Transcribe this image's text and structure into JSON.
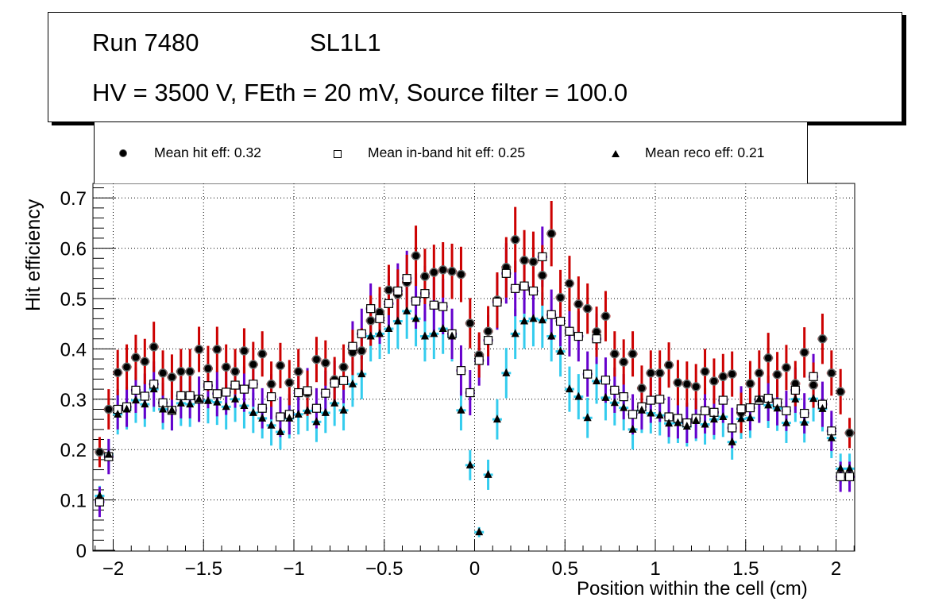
{
  "title_box": {
    "run": "Run 7480",
    "layer": "SL1L1",
    "conditions": "HV = 3500 V, FEth = 20 mV, Source filter = 100.0"
  },
  "legend": {
    "items": [
      {
        "label": "Mean hit  eff: 0.32",
        "marker": "filled-circle"
      },
      {
        "label": "Mean in-band hit eff: 0.25",
        "marker": "open-square"
      },
      {
        "label": "Mean reco eff: 0.21",
        "marker": "filled-triangle"
      }
    ]
  },
  "colors": {
    "hit_error": "#cc0000",
    "inband_error": "#6600cc",
    "reco_error": "#33ccee",
    "marker": "#000000"
  },
  "chart_data": {
    "type": "scatter",
    "title": "",
    "xlabel": "Position within the cell (cm)",
    "ylabel": "Hit efficiency",
    "xlim": [
      -2.1,
      2.1
    ],
    "ylim": [
      0,
      0.73
    ],
    "grid": true,
    "legend_position": "top",
    "xticks": [
      -2,
      -1.5,
      -1,
      -0.5,
      0,
      0.5,
      1,
      1.5,
      2
    ],
    "xtick_labels": [
      "−2",
      "−1.5",
      "−1",
      "−0.5",
      "0",
      "0.5",
      "1",
      "1.5",
      "2"
    ],
    "yticks": [
      0,
      0.1,
      0.2,
      0.3,
      0.4,
      0.5,
      0.6,
      0.7
    ],
    "ytick_labels": [
      "0",
      "0.1",
      "0.2",
      "0.3",
      "0.4",
      "0.5",
      "0.6",
      "0.7"
    ],
    "x_start": -2.075,
    "x_step": 0.05,
    "series": [
      {
        "name": "Mean hit  eff: 0.32",
        "marker": "filled-circle",
        "values": [
          0.195,
          0.28,
          0.353,
          0.364,
          0.383,
          0.375,
          0.404,
          0.352,
          0.344,
          0.355,
          0.355,
          0.399,
          0.361,
          0.399,
          0.364,
          0.355,
          0.396,
          0.369,
          0.39,
          0.33,
          0.367,
          0.333,
          0.355,
          0.312,
          0.379,
          0.372,
          0.339,
          0.364,
          0.393,
          0.396,
          0.456,
          0.473,
          0.517,
          0.508,
          0.532,
          0.585,
          0.544,
          0.552,
          0.557,
          0.554,
          0.548,
          0.451,
          0.388,
          0.435,
          0.497,
          0.562,
          0.617,
          0.576,
          0.573,
          0.546,
          0.629,
          0.502,
          0.53,
          0.489,
          0.48,
          0.434,
          0.465,
          0.39,
          0.374,
          0.39,
          0.322,
          0.352,
          0.352,
          0.368,
          0.333,
          0.33,
          0.325,
          0.355,
          0.336,
          0.345,
          0.35,
          0.273,
          0.331,
          0.352,
          0.382,
          0.349,
          0.363,
          0.331,
          0.393,
          0.328,
          0.42,
          0.352,
          0.315,
          0.233
        ],
        "errors": [
          0.03,
          0.04,
          0.045,
          0.045,
          0.045,
          0.045,
          0.05,
          0.045,
          0.045,
          0.045,
          0.045,
          0.045,
          0.045,
          0.045,
          0.045,
          0.045,
          0.045,
          0.045,
          0.045,
          0.045,
          0.045,
          0.045,
          0.045,
          0.045,
          0.045,
          0.045,
          0.045,
          0.045,
          0.045,
          0.045,
          0.05,
          0.05,
          0.05,
          0.05,
          0.055,
          0.06,
          0.055,
          0.055,
          0.055,
          0.055,
          0.055,
          0.05,
          0.045,
          0.05,
          0.055,
          0.06,
          0.065,
          0.06,
          0.06,
          0.06,
          0.065,
          0.055,
          0.055,
          0.055,
          0.05,
          0.05,
          0.05,
          0.045,
          0.045,
          0.045,
          0.045,
          0.045,
          0.045,
          0.045,
          0.045,
          0.045,
          0.045,
          0.045,
          0.045,
          0.045,
          0.045,
          0.04,
          0.045,
          0.045,
          0.05,
          0.045,
          0.045,
          0.045,
          0.05,
          0.045,
          0.05,
          0.045,
          0.045,
          0.03
        ]
      },
      {
        "name": "Mean in-band hit eff: 0.25",
        "marker": "open-square",
        "values": [
          0.096,
          0.186,
          0.28,
          0.285,
          0.318,
          0.306,
          0.33,
          0.293,
          0.278,
          0.307,
          0.307,
          0.3,
          0.327,
          0.311,
          0.314,
          0.328,
          0.32,
          0.33,
          0.282,
          0.305,
          0.265,
          0.27,
          0.313,
          0.317,
          0.282,
          0.312,
          0.332,
          0.337,
          0.405,
          0.43,
          0.48,
          0.46,
          0.49,
          0.515,
          0.54,
          0.495,
          0.51,
          0.487,
          0.484,
          0.43,
          0.357,
          0.313,
          0.377,
          0.417,
          0.493,
          0.55,
          0.52,
          0.525,
          0.515,
          0.583,
          0.468,
          0.455,
          0.435,
          0.425,
          0.35,
          0.42,
          0.338,
          0.318,
          0.305,
          0.27,
          0.285,
          0.298,
          0.3,
          0.265,
          0.262,
          0.253,
          0.262,
          0.277,
          0.274,
          0.298,
          0.243,
          0.281,
          0.283,
          0.298,
          0.302,
          0.293,
          0.277,
          0.318,
          0.272,
          0.345,
          0.29,
          0.237,
          0.146,
          0.146
        ],
        "errors": [
          0.03,
          0.035,
          0.04,
          0.04,
          0.045,
          0.045,
          0.045,
          0.04,
          0.04,
          0.045,
          0.045,
          0.045,
          0.045,
          0.045,
          0.045,
          0.045,
          0.045,
          0.045,
          0.04,
          0.045,
          0.04,
          0.04,
          0.045,
          0.045,
          0.04,
          0.045,
          0.045,
          0.045,
          0.05,
          0.05,
          0.05,
          0.05,
          0.055,
          0.055,
          0.055,
          0.055,
          0.055,
          0.055,
          0.055,
          0.05,
          0.05,
          0.045,
          0.05,
          0.05,
          0.055,
          0.06,
          0.055,
          0.055,
          0.055,
          0.06,
          0.05,
          0.05,
          0.05,
          0.05,
          0.045,
          0.05,
          0.045,
          0.045,
          0.045,
          0.04,
          0.045,
          0.045,
          0.045,
          0.04,
          0.04,
          0.04,
          0.04,
          0.045,
          0.045,
          0.045,
          0.04,
          0.045,
          0.045,
          0.045,
          0.045,
          0.045,
          0.04,
          0.045,
          0.04,
          0.045,
          0.045,
          0.04,
          0.03,
          0.03
        ]
      },
      {
        "name": "Mean reco eff: 0.21",
        "marker": "filled-triangle",
        "values": [
          0.108,
          0.19,
          0.27,
          0.28,
          0.298,
          0.29,
          0.32,
          0.28,
          0.278,
          0.292,
          0.29,
          0.3,
          0.297,
          0.294,
          0.285,
          0.3,
          0.287,
          0.273,
          0.262,
          0.248,
          0.235,
          0.262,
          0.27,
          0.277,
          0.255,
          0.273,
          0.292,
          0.278,
          0.33,
          0.35,
          0.425,
          0.43,
          0.44,
          0.455,
          0.475,
          0.46,
          0.425,
          0.43,
          0.44,
          0.425,
          0.278,
          0.169,
          0.036,
          0.15,
          0.26,
          0.352,
          0.43,
          0.455,
          0.46,
          0.457,
          0.425,
          0.395,
          0.32,
          0.305,
          0.263,
          0.336,
          0.303,
          0.293,
          0.283,
          0.24,
          0.278,
          0.272,
          0.268,
          0.252,
          0.253,
          0.246,
          0.257,
          0.25,
          0.26,
          0.265,
          0.215,
          0.261,
          0.263,
          0.3,
          0.288,
          0.282,
          0.253,
          0.3,
          0.254,
          0.301,
          0.281,
          0.223,
          0.162,
          0.162
        ],
        "errors": [
          0.02,
          0.03,
          0.04,
          0.04,
          0.045,
          0.045,
          0.045,
          0.04,
          0.04,
          0.045,
          0.045,
          0.045,
          0.045,
          0.045,
          0.045,
          0.045,
          0.045,
          0.04,
          0.04,
          0.04,
          0.035,
          0.04,
          0.04,
          0.04,
          0.04,
          0.04,
          0.045,
          0.04,
          0.045,
          0.05,
          0.05,
          0.05,
          0.05,
          0.055,
          0.055,
          0.055,
          0.05,
          0.05,
          0.05,
          0.05,
          0.04,
          0.03,
          0.01,
          0.03,
          0.04,
          0.05,
          0.05,
          0.055,
          0.055,
          0.055,
          0.05,
          0.05,
          0.045,
          0.045,
          0.04,
          0.045,
          0.045,
          0.045,
          0.045,
          0.04,
          0.045,
          0.04,
          0.04,
          0.04,
          0.04,
          0.04,
          0.04,
          0.04,
          0.04,
          0.04,
          0.035,
          0.04,
          0.04,
          0.045,
          0.045,
          0.045,
          0.04,
          0.045,
          0.04,
          0.045,
          0.045,
          0.04,
          0.03,
          0.03
        ]
      }
    ]
  }
}
